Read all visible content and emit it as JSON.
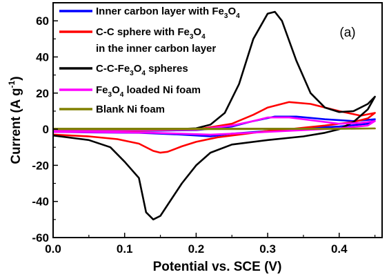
{
  "chart_data": {
    "type": "line",
    "xlabel": "Potential vs. SCE (V)",
    "ylabel": "Current (A g-1)",
    "ylabel_parts": {
      "main": "Current (A g",
      "sup": "-1",
      "end": ")"
    },
    "panel_label": "(a)",
    "xlim": [
      0.0,
      0.46
    ],
    "ylim": [
      -60,
      70
    ],
    "x_ticks": [
      0.0,
      0.1,
      0.2,
      0.3,
      0.4
    ],
    "x_tick_labels": [
      "0.0",
      "0.1",
      "0.2",
      "0.3",
      "0.4"
    ],
    "y_ticks": [
      -60,
      -40,
      -20,
      0,
      20,
      40,
      60
    ],
    "y_tick_labels": [
      "-60",
      "-40",
      "-20",
      "0",
      "20",
      "40",
      "60"
    ],
    "grid": false,
    "legend_position": "top-left",
    "series": [
      {
        "name": "Inner carbon layer with Fe3O4",
        "legend_parts": [
          [
            "Inner carbon layer with Fe",
            ""
          ],
          [
            "3",
            "sub"
          ],
          [
            "O",
            ""
          ],
          [
            "4",
            "sub"
          ]
        ],
        "color": "#0000ff",
        "x": [
          0.0,
          0.05,
          0.1,
          0.15,
          0.2,
          0.25,
          0.28,
          0.31,
          0.34,
          0.38,
          0.42,
          0.45,
          0.44,
          0.4,
          0.35,
          0.3,
          0.25,
          0.22,
          0.18,
          0.12,
          0.06,
          0.0
        ],
        "y": [
          -1.5,
          -1.2,
          -1.0,
          -0.8,
          -0.5,
          1.5,
          4.5,
          7.0,
          7.0,
          5.5,
          4.5,
          5.5,
          3.0,
          1.5,
          0.5,
          -1.0,
          -2.5,
          -4.0,
          -3.0,
          -2.0,
          -1.8,
          -1.5
        ]
      },
      {
        "name": "C-C sphere with Fe3O4 in the inner carbon layer",
        "legend_parts": [
          [
            "C-C sphere with Fe",
            ""
          ],
          [
            "3",
            "sub"
          ],
          [
            "O",
            ""
          ],
          [
            "4",
            "sub"
          ]
        ],
        "legend_line2": "in the inner carbon layer",
        "color": "#ff0000",
        "x": [
          0.0,
          0.05,
          0.1,
          0.15,
          0.2,
          0.25,
          0.28,
          0.3,
          0.33,
          0.36,
          0.4,
          0.43,
          0.45,
          0.44,
          0.42,
          0.38,
          0.33,
          0.3,
          0.26,
          0.23,
          0.2,
          0.18,
          0.16,
          0.15,
          0.14,
          0.12,
          0.09,
          0.05,
          0.0
        ],
        "y": [
          -1.5,
          -1.2,
          -1.0,
          -0.6,
          -0.2,
          3.0,
          8.0,
          12.0,
          15.0,
          14.0,
          10.0,
          7.5,
          9.0,
          6.0,
          4.0,
          2.0,
          0.0,
          -1.0,
          -3.0,
          -4.5,
          -7.0,
          -9.5,
          -12.5,
          -13.0,
          -12.0,
          -8.0,
          -5.5,
          -4.0,
          -3.0
        ]
      },
      {
        "name": "C-C-Fe3O4 spheres",
        "legend_parts": [
          [
            "C-C-Fe",
            ""
          ],
          [
            "3",
            "sub"
          ],
          [
            "O",
            ""
          ],
          [
            "4",
            "sub"
          ],
          [
            " spheres",
            ""
          ]
        ],
        "color": "#000000",
        "x": [
          0.0,
          0.05,
          0.1,
          0.15,
          0.2,
          0.22,
          0.24,
          0.26,
          0.28,
          0.3,
          0.31,
          0.32,
          0.34,
          0.36,
          0.38,
          0.4,
          0.42,
          0.44,
          0.45,
          0.44,
          0.42,
          0.4,
          0.38,
          0.35,
          0.3,
          0.25,
          0.22,
          0.2,
          0.18,
          0.16,
          0.15,
          0.14,
          0.135,
          0.13,
          0.12,
          0.1,
          0.08,
          0.05,
          0.0
        ],
        "y": [
          -1.0,
          -0.8,
          -0.5,
          -0.3,
          0.5,
          2.5,
          9.0,
          25.0,
          50.0,
          64.0,
          65.0,
          60.0,
          38.0,
          20.0,
          12.0,
          9.5,
          10.0,
          14.0,
          18.0,
          11.0,
          4.0,
          0.0,
          -2.0,
          -4.0,
          -6.0,
          -8.5,
          -13.0,
          -20.0,
          -30.0,
          -42.0,
          -48.0,
          -50.0,
          -48.0,
          -46.0,
          -27.0,
          -18.0,
          -10.0,
          -6.0,
          -3.5
        ]
      },
      {
        "name": "Fe3O4 loaded Ni foam",
        "legend_parts": [
          [
            "Fe",
            ""
          ],
          [
            "3",
            "sub"
          ],
          [
            "O",
            ""
          ],
          [
            "4",
            "sub"
          ],
          [
            " loaded Ni foam",
            ""
          ]
        ],
        "color": "#ff00ff",
        "x": [
          0.0,
          0.05,
          0.1,
          0.15,
          0.2,
          0.25,
          0.28,
          0.3,
          0.33,
          0.36,
          0.4,
          0.43,
          0.45,
          0.44,
          0.4,
          0.35,
          0.3,
          0.25,
          0.22,
          0.18,
          0.14,
          0.1,
          0.05,
          0.0
        ],
        "y": [
          -1.0,
          -0.9,
          -0.7,
          -0.5,
          -0.3,
          2.0,
          4.5,
          6.5,
          6.5,
          5.0,
          3.0,
          3.5,
          4.5,
          2.0,
          0.5,
          -0.5,
          -1.5,
          -2.5,
          -3.0,
          -2.5,
          -2.0,
          -1.8,
          -1.6,
          -1.5
        ]
      },
      {
        "name": "Blank Ni foam",
        "legend_parts": [
          [
            "Blank Ni foam",
            ""
          ]
        ],
        "color": "#808000",
        "x": [
          0.0,
          0.1,
          0.2,
          0.3,
          0.4,
          0.45,
          0.4,
          0.3,
          0.2,
          0.1,
          0.0
        ],
        "y": [
          0.3,
          0.3,
          0.3,
          0.3,
          0.3,
          0.4,
          0.2,
          0.1,
          0.0,
          -0.1,
          0.0
        ]
      }
    ]
  }
}
